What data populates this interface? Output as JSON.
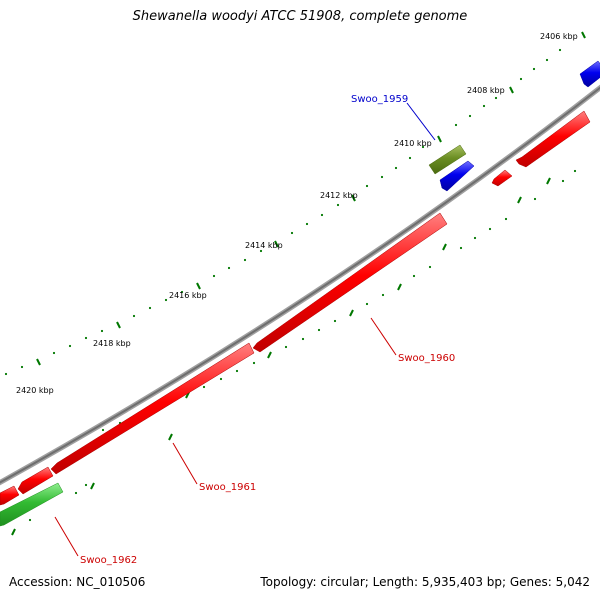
{
  "title": "Shewanella woodyi ATCC 51908, complete genome",
  "footer": {
    "accession": "Accession: NC_010506",
    "summary": "Topology: circular; Length: 5,935,403 bp; Genes: 5,042"
  },
  "colors": {
    "backbone": "#8a8a8a",
    "forward_gene": "#0000ee",
    "reverse_gene": "#ee0000",
    "highlight_gene_olive": "#6b8e23",
    "highlight_gene_green": "#33bb33",
    "tick": "#007700"
  },
  "ticks": [
    {
      "label": "2406 kbp"
    },
    {
      "label": "2408 kbp"
    },
    {
      "label": "2410 kbp"
    },
    {
      "label": "2412 kbp"
    },
    {
      "label": "2414 kbp"
    },
    {
      "label": "2416 kbp"
    },
    {
      "label": "2418 kbp"
    },
    {
      "label": "2420 kbp"
    }
  ],
  "gene_labels": [
    {
      "name": "Swoo_1959",
      "color": "#0000cc"
    },
    {
      "name": "Swoo_1960",
      "color": "#cc0000"
    },
    {
      "name": "Swoo_1961",
      "color": "#cc0000"
    },
    {
      "name": "Swoo_1962",
      "color": "#cc0000"
    }
  ]
}
